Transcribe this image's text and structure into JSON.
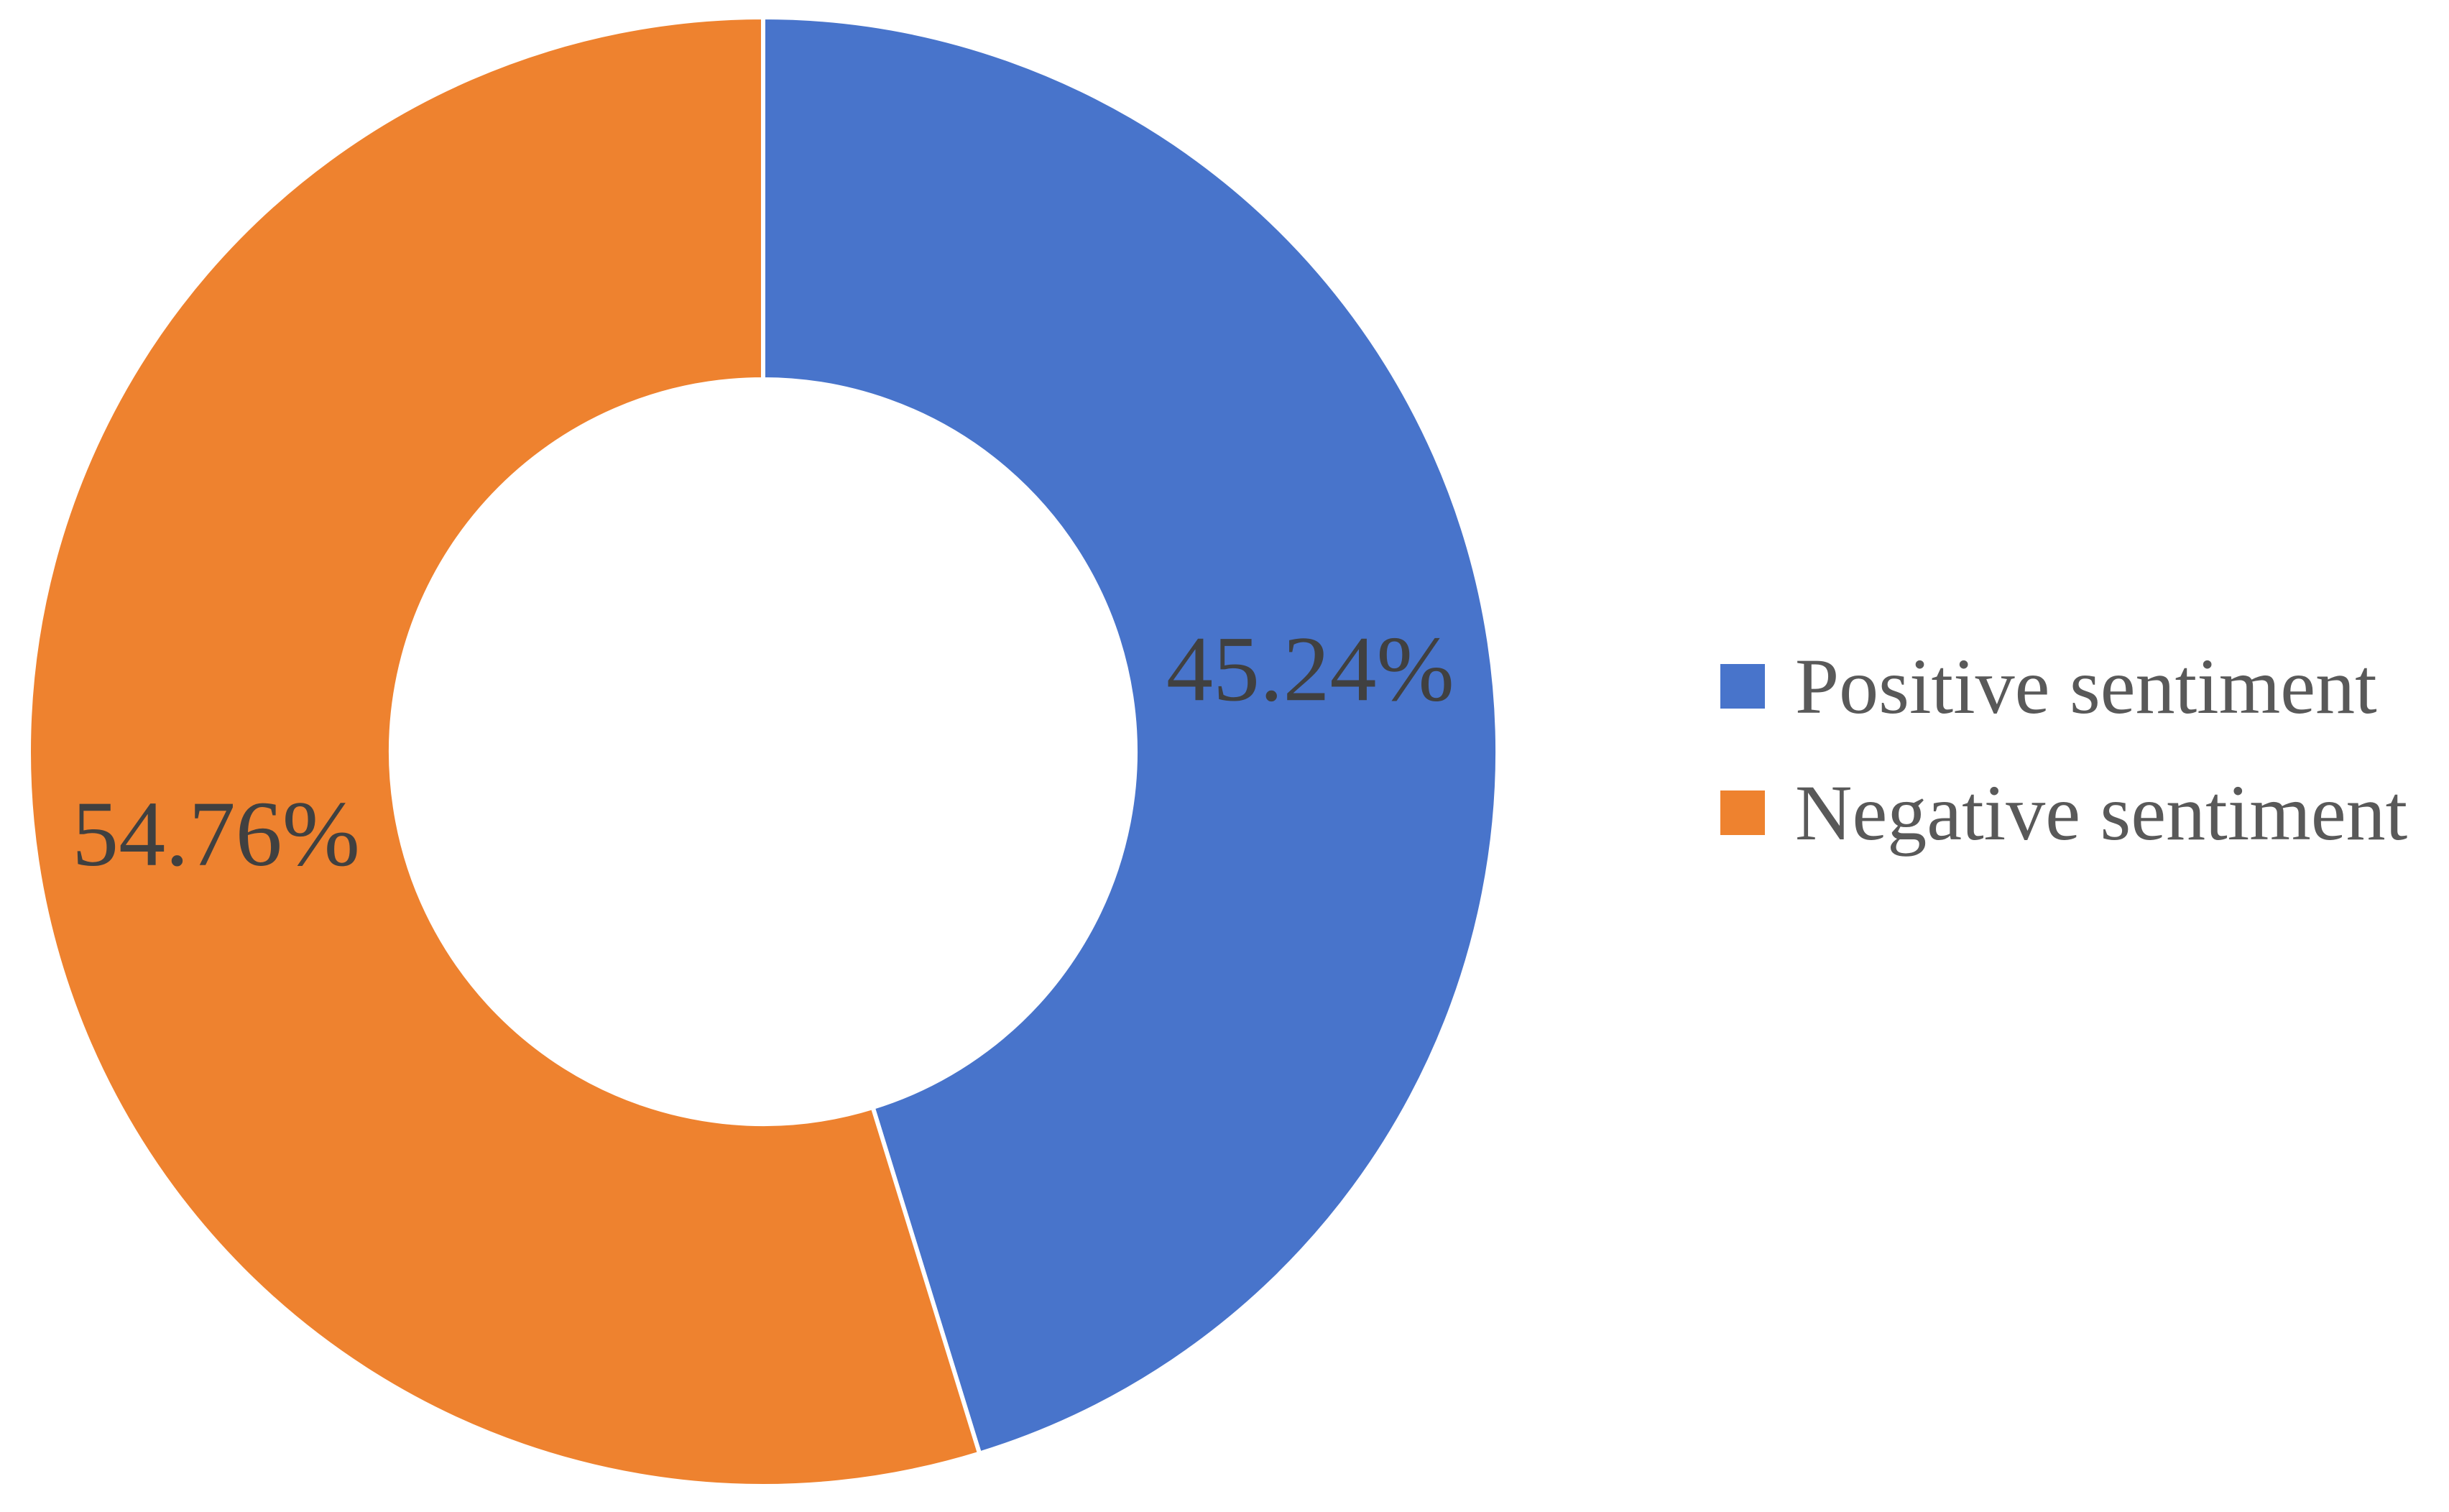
{
  "chart_data": {
    "type": "pie",
    "variant": "donut",
    "categories": [
      "Positive sentiment",
      "Negative sentiment"
    ],
    "values": [
      45.24,
      54.76
    ],
    "data_labels": [
      "45.24%",
      "54.76%"
    ],
    "colors": [
      "#4874CB",
      "#EE822F"
    ],
    "title": "",
    "legend": {
      "placement": "right",
      "entries": [
        "Positive sentiment",
        "Negative sentiment"
      ]
    },
    "start_angle": "top",
    "direction": "clockwise"
  }
}
